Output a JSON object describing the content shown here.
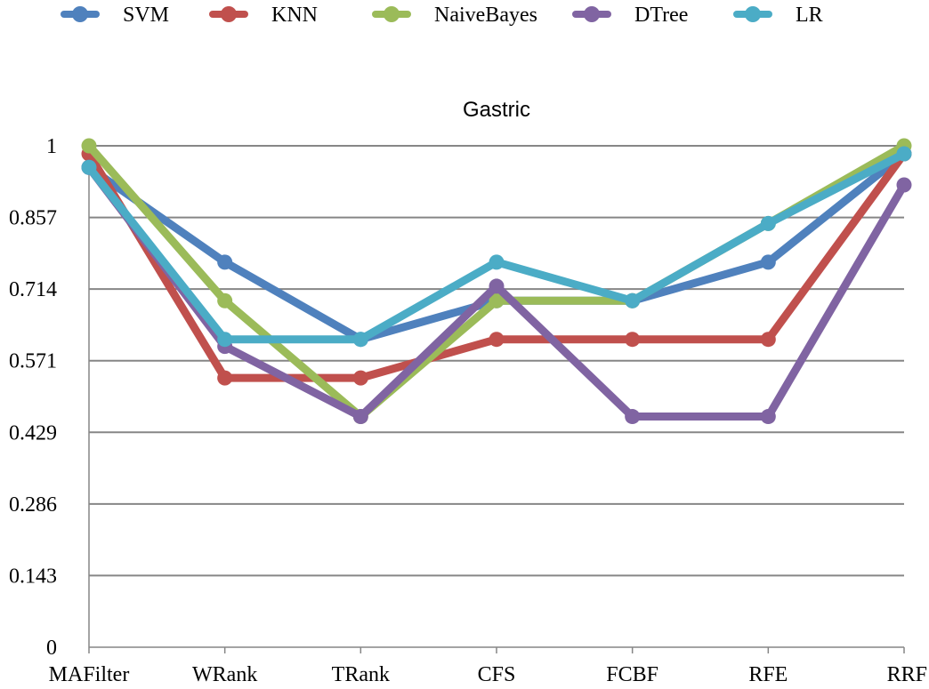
{
  "chart_data": {
    "type": "line",
    "title": "Gastric",
    "xlabel": "",
    "ylabel": "",
    "categories": [
      "MAFilter",
      "WRank",
      "TRank",
      "CFS",
      "FCBF",
      "RFE",
      "RRF"
    ],
    "yticks": [
      "0",
      "0.143",
      "0.286",
      "0.429",
      "0.571",
      "0.714",
      "0.857",
      "1"
    ],
    "ylim": [
      0,
      1
    ],
    "grid": true,
    "legend_position": "top",
    "series": [
      {
        "name": "SVM",
        "color": "#4F81BD",
        "values": [
          0.957,
          0.768,
          0.614,
          0.691,
          0.691,
          0.768,
          0.984
        ]
      },
      {
        "name": "KNN",
        "color": "#C0504D",
        "values": [
          0.984,
          0.537,
          0.537,
          0.614,
          0.614,
          0.614,
          0.984
        ]
      },
      {
        "name": "NaiveBayes",
        "color": "#9BBB59",
        "values": [
          1.0,
          0.691,
          0.46,
          0.691,
          0.691,
          0.845,
          1.0
        ]
      },
      {
        "name": "DTree",
        "color": "#8064A2",
        "values": [
          0.957,
          0.6,
          0.46,
          0.72,
          0.46,
          0.46,
          0.922
        ]
      },
      {
        "name": "LR",
        "color": "#4BACC6",
        "values": [
          0.957,
          0.614,
          0.614,
          0.768,
          0.691,
          0.845,
          0.984
        ]
      }
    ]
  }
}
